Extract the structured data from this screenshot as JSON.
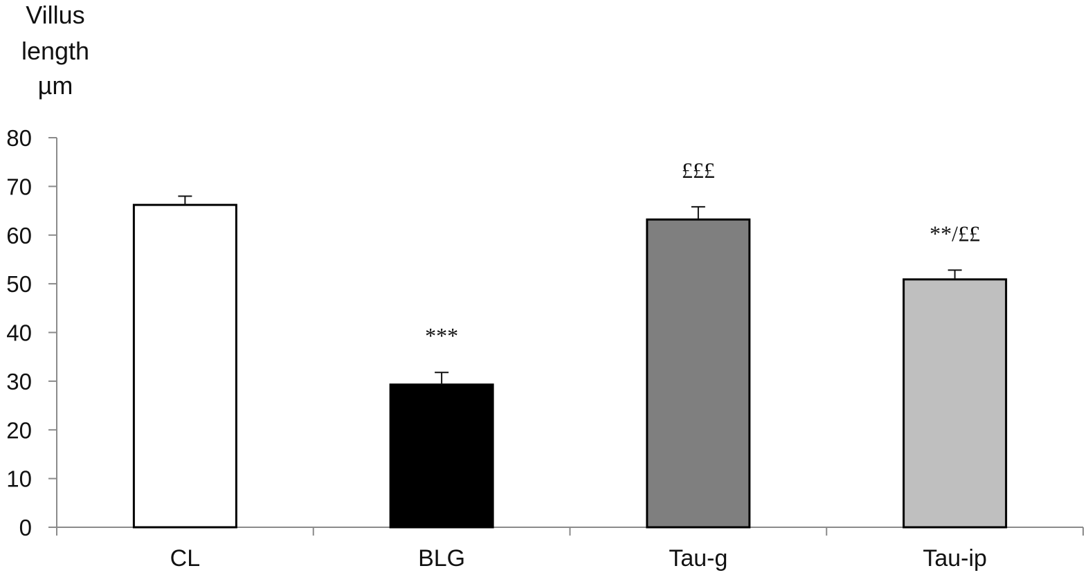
{
  "chart_data": {
    "type": "bar",
    "title": "",
    "ylabel_lines": [
      "Villus",
      "length",
      "µm"
    ],
    "xlabel": "",
    "categories": [
      "CL",
      "BLG",
      "Tau-g",
      "Tau-ip"
    ],
    "values": [
      66.2,
      29.3,
      63.2,
      50.9
    ],
    "errors": [
      1.8,
      2.5,
      2.6,
      1.9
    ],
    "annotations": [
      "",
      "***",
      "£££",
      "**/££"
    ],
    "bar_colors": [
      "#ffffff",
      "#000000",
      "#7f7f7f",
      "#bfbfbf"
    ],
    "bar_edge_color": "#000000",
    "ylim": [
      0,
      80
    ],
    "yticks": [
      0,
      10,
      20,
      30,
      40,
      50,
      60,
      70,
      80
    ],
    "grid": false,
    "legend": "none"
  }
}
